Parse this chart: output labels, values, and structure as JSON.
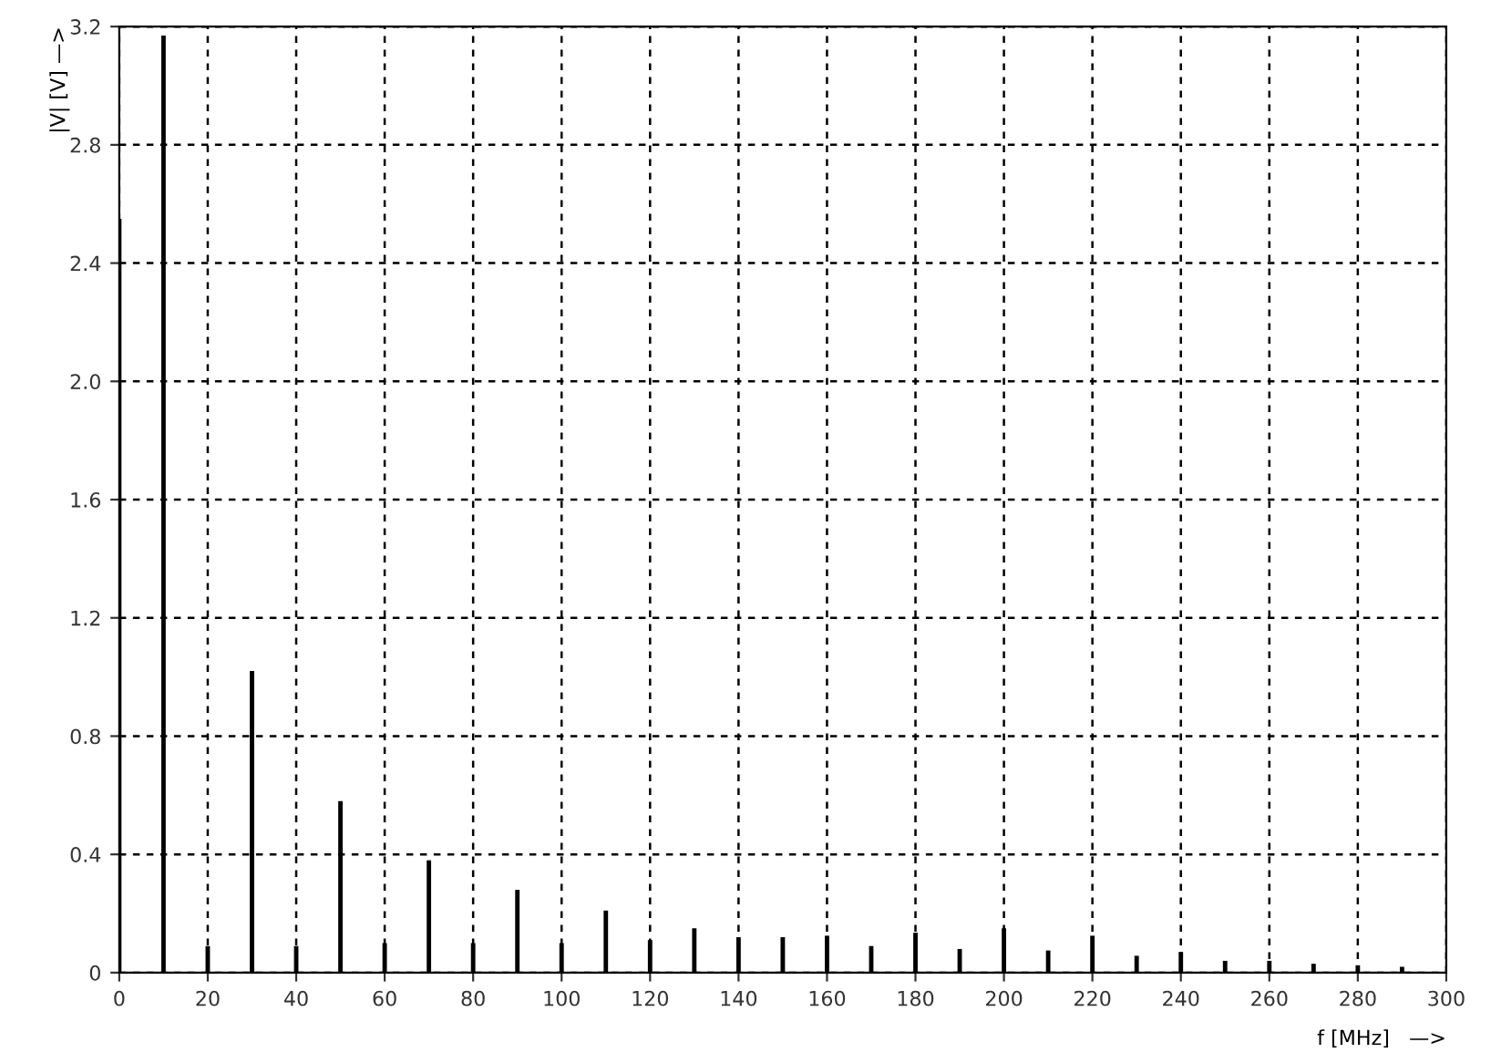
{
  "chart_data": {
    "type": "bar",
    "xlabel": "f [MHz]   —>",
    "ylabel": "|V| [V] —>",
    "x": [
      0,
      10,
      20,
      30,
      40,
      50,
      60,
      70,
      80,
      90,
      100,
      110,
      120,
      130,
      140,
      150,
      160,
      170,
      180,
      190,
      200,
      210,
      220,
      230,
      240,
      250,
      260,
      270,
      280,
      290
    ],
    "values": [
      2.55,
      3.17,
      0.09,
      1.02,
      0.09,
      0.58,
      0.1,
      0.38,
      0.1,
      0.28,
      0.1,
      0.21,
      0.11,
      0.15,
      0.12,
      0.12,
      0.125,
      0.09,
      0.135,
      0.08,
      0.15,
      0.075,
      0.125,
      0.057,
      0.07,
      0.04,
      0.04,
      0.03,
      0.025,
      0.02
    ],
    "color": "#000000",
    "xlim": [
      0,
      300
    ],
    "xticks": [
      0,
      20,
      40,
      60,
      80,
      100,
      120,
      140,
      160,
      180,
      200,
      220,
      240,
      260,
      280,
      300
    ],
    "ylim": [
      0,
      3.2
    ],
    "yticks": [
      0,
      0.4,
      0.8,
      1.2,
      1.6,
      {
        "value": 2,
        "label": "2.0"
      },
      2.4,
      2.8,
      3.2
    ],
    "grid": true,
    "legend": false
  }
}
